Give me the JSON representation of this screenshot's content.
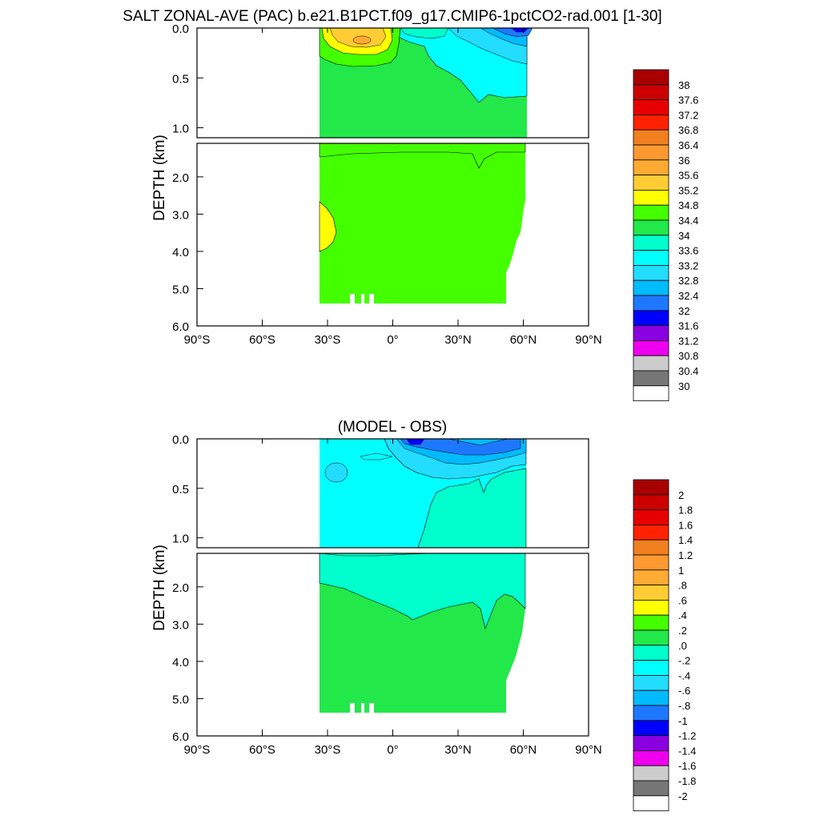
{
  "chart_data": [
    {
      "type": "heatmap",
      "title": "SALT ZONAL-AVE (PAC) b.e21.B1PCT.f09_g17.CMIP6-1pctCO2-rad.001 [1-30]",
      "ylabel": "DEPTH (km)",
      "xticks": [
        "90°S",
        "60°S",
        "30°S",
        "0°",
        "30°N",
        "60°N",
        "90°N"
      ],
      "xlim": [
        -90,
        90
      ],
      "yticks_upper": [
        "0.0",
        "0.5",
        "1.0"
      ],
      "yticks_lower": [
        "2.0",
        "3.0",
        "4.0",
        "5.0",
        "6.0"
      ],
      "ylim_upper": [
        0,
        1.1
      ],
      "ylim_lower": [
        1.1,
        6.0
      ],
      "colorbar_labels": [
        "38",
        "37.6",
        "37.2",
        "36.8",
        "36.4",
        "36",
        "35.6",
        "35.2",
        "34.8",
        "34.4",
        "34",
        "33.6",
        "33.2",
        "32.8",
        "32.4",
        "32",
        "31.6",
        "31.2",
        "30.8",
        "30.4",
        "30"
      ],
      "colorbar_colors": [
        "#a80000",
        "#cc0000",
        "#e60000",
        "#ff2200",
        "#f08020",
        "#ff9930",
        "#ffaa33",
        "#ffcc33",
        "#ffff00",
        "#44ff00",
        "#22e84a",
        "#00ffcc",
        "#00ffff",
        "#22ddff",
        "#00bbff",
        "#1e78ff",
        "#0000ff",
        "#8800dd",
        "#ee00ee",
        "#cccccc",
        "#777777",
        "#ffffff"
      ],
      "dominant_field": {
        "upper_ocean": [
          {
            "region": "30°S–0° surface",
            "value_range": [
              34.8,
              35.6
            ]
          },
          {
            "region": "equator to 60°N surface",
            "value_range": [
              32.0,
              34.0
            ]
          },
          {
            "region": "below ~0.3 km",
            "value_range": [
              34.4,
              34.8
            ]
          }
        ],
        "deep_ocean": [
          {
            "region": "most of basin",
            "value_range": [
              34.4,
              34.8
            ]
          },
          {
            "region": "30°S at 2.7–4.0 km",
            "value_range": [
              34.8,
              35.2
            ]
          }
        ]
      }
    },
    {
      "type": "heatmap",
      "title": "(MODEL - OBS)",
      "ylabel": "DEPTH (km)",
      "xticks": [
        "90°S",
        "60°S",
        "30°S",
        "0°",
        "30°N",
        "60°N",
        "90°N"
      ],
      "xlim": [
        -90,
        90
      ],
      "yticks_upper": [
        "0.0",
        "0.5",
        "1.0"
      ],
      "yticks_lower": [
        "2.0",
        "3.0",
        "4.0",
        "5.0",
        "6.0"
      ],
      "ylim_upper": [
        0,
        1.1
      ],
      "ylim_lower": [
        1.1,
        6.0
      ],
      "colorbar_labels": [
        "2",
        "1.8",
        "1.6",
        "1.4",
        "1.2",
        "1",
        ".8",
        ".6",
        ".4",
        ".2",
        ".0",
        "-.2",
        "-.4",
        "-.6",
        "-.8",
        "-1",
        "-1.2",
        "-1.4",
        "-1.6",
        "-1.8",
        "-2"
      ],
      "colorbar_colors": [
        "#a80000",
        "#cc0000",
        "#e60000",
        "#ff2200",
        "#f08020",
        "#ff9930",
        "#ffaa33",
        "#ffcc33",
        "#ffff00",
        "#44ff00",
        "#22e84a",
        "#00ffcc",
        "#00ffff",
        "#22ddff",
        "#00bbff",
        "#1e78ff",
        "#0000ff",
        "#8800dd",
        "#ee00ee",
        "#cccccc",
        "#777777",
        "#ffffff"
      ],
      "dominant_field": {
        "upper_ocean": [
          {
            "region": "30°S–30°N",
            "value_range": [
              -0.4,
              -0.2
            ]
          },
          {
            "region": "surface 0°–60°N",
            "value_range": [
              -1.0,
              -0.4
            ]
          }
        ],
        "deep_ocean": [
          {
            "region": "1.1–2.7 km",
            "value_range": [
              -0.2,
              0.0
            ]
          },
          {
            "region": "below ~2.8 km",
            "value_range": [
              0.0,
              0.2
            ]
          }
        ]
      }
    }
  ]
}
